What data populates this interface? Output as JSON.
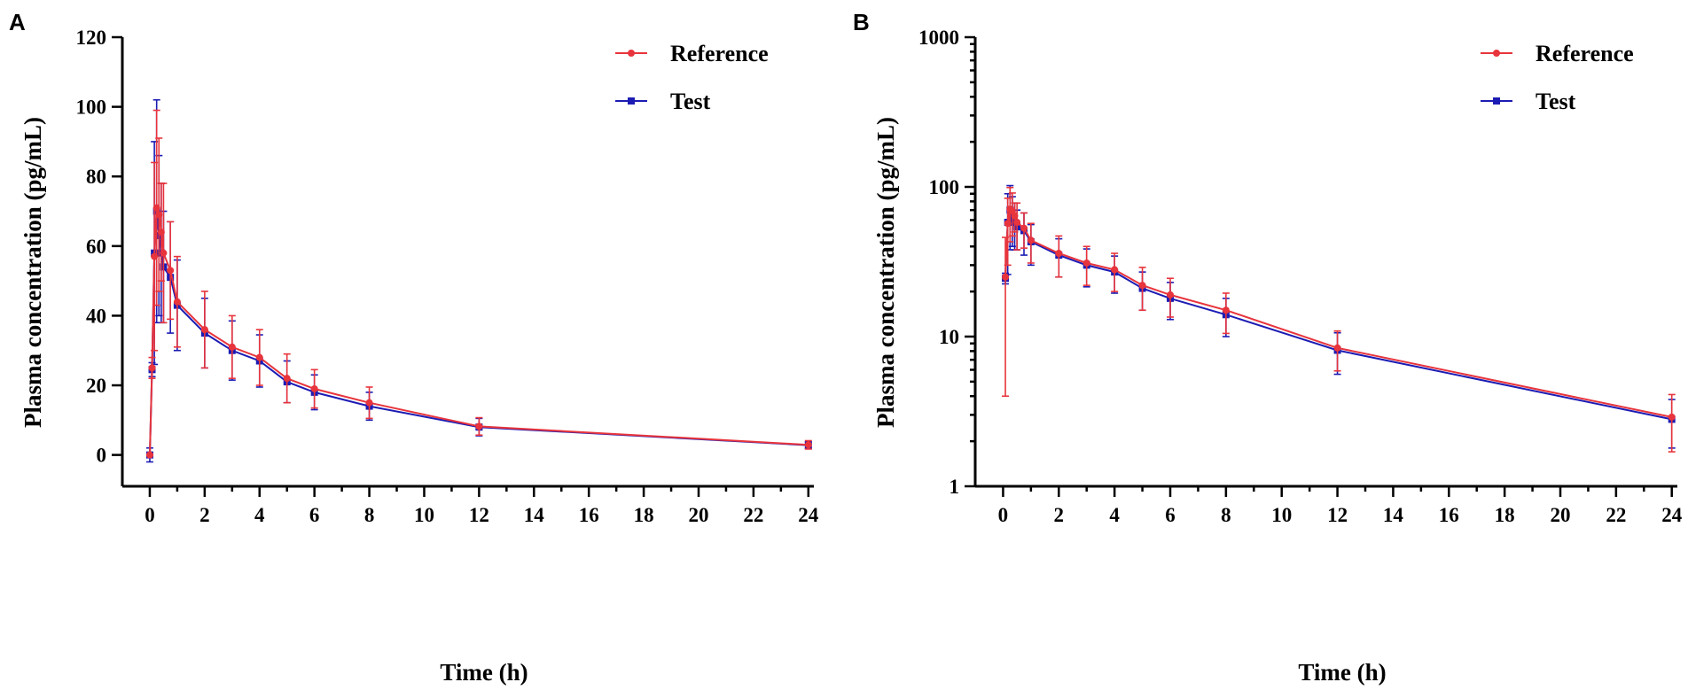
{
  "colors": {
    "reference": "#e8343c",
    "test": "#1c1cb4",
    "axis": "#000000"
  },
  "chart_data": [
    {
      "panel": "A",
      "type": "line",
      "scale": "linear",
      "xlabel": "Time (h)",
      "ylabel": "Plasma concentration (pg/mL)",
      "xlim": [
        -1,
        24.2
      ],
      "ylim": [
        -9,
        120
      ],
      "xticks": [
        0,
        2,
        4,
        6,
        8,
        10,
        12,
        14,
        16,
        18,
        20,
        22,
        24
      ],
      "xtick_labels": [
        "0",
        "2",
        "4",
        "6",
        "8",
        "10",
        "12",
        "14",
        "16",
        "18",
        "20",
        "22",
        "24"
      ],
      "yticks": [
        0,
        20,
        40,
        60,
        80,
        100,
        120
      ],
      "ytick_labels": [
        "0",
        "20",
        "40",
        "60",
        "80",
        "100",
        "120"
      ],
      "legend_position": "top-right",
      "series": [
        {
          "name": "Reference",
          "marker": "circle",
          "x": [
            0,
            0.083,
            0.167,
            0.25,
            0.333,
            0.417,
            0.5,
            0.75,
            1,
            2,
            3,
            4,
            5,
            6,
            8,
            12,
            24
          ],
          "y": [
            0,
            25,
            57,
            71,
            69,
            64,
            58,
            53,
            44,
            36,
            31,
            28,
            22,
            19,
            15,
            8.2,
            2.9
          ],
          "sd": [
            0,
            3,
            27,
            28,
            22,
            14,
            20,
            14,
            13,
            11,
            9,
            8,
            7,
            5.5,
            4.5,
            2.5,
            1.2
          ]
        },
        {
          "name": "Test",
          "marker": "square",
          "x": [
            0,
            0.083,
            0.167,
            0.25,
            0.333,
            0.417,
            0.5,
            0.75,
            1,
            2,
            3,
            4,
            5,
            6,
            8,
            12,
            24
          ],
          "y": [
            0,
            24.5,
            58,
            70,
            63,
            58,
            54,
            51,
            43,
            35,
            30,
            27,
            21,
            18,
            14,
            8,
            2.8
          ],
          "sd": [
            2,
            2,
            32,
            32,
            23,
            20,
            16,
            16,
            13,
            10,
            8.5,
            7.5,
            6,
            5,
            4,
            2.5,
            1
          ]
        }
      ]
    },
    {
      "panel": "B",
      "type": "line",
      "scale": "log",
      "xlabel": "Time (h)",
      "ylabel": "Plasma concentration (pg/mL)",
      "xlim": [
        -1,
        24.2
      ],
      "ylim": [
        1,
        1000
      ],
      "xticks": [
        0,
        2,
        4,
        6,
        8,
        10,
        12,
        14,
        16,
        18,
        20,
        22,
        24
      ],
      "xtick_labels": [
        "0",
        "2",
        "4",
        "6",
        "8",
        "10",
        "12",
        "14",
        "16",
        "18",
        "20",
        "22",
        "24"
      ],
      "yticks": [
        1,
        10,
        100,
        1000
      ],
      "ytick_labels": [
        "1",
        "10",
        "100",
        "1000"
      ],
      "legend_position": "top-right",
      "series": [
        {
          "name": "Reference",
          "marker": "circle",
          "x": [
            0.083,
            0.167,
            0.25,
            0.333,
            0.417,
            0.5,
            0.75,
            1,
            2,
            3,
            4,
            5,
            6,
            8,
            12,
            24
          ],
          "y": [
            25,
            57,
            71,
            69,
            64,
            58,
            53,
            44,
            36,
            31,
            28,
            22,
            19,
            15,
            8.4,
            2.9
          ],
          "sd": [
            21,
            27,
            28,
            22,
            14,
            20,
            14,
            13,
            11,
            9,
            8,
            7,
            5.5,
            4.5,
            2.5,
            1.2
          ]
        },
        {
          "name": "Test",
          "marker": "square",
          "x": [
            0.083,
            0.167,
            0.25,
            0.333,
            0.417,
            0.5,
            0.75,
            1,
            2,
            3,
            4,
            5,
            6,
            8,
            12,
            24
          ],
          "y": [
            24.5,
            58,
            70,
            63,
            58,
            54,
            51,
            43,
            35,
            30,
            27,
            21,
            18,
            14,
            8.1,
            2.8
          ],
          "sd": [
            2,
            32,
            32,
            23,
            20,
            16,
            16,
            13,
            10,
            8.5,
            7.5,
            6,
            5,
            4,
            2.5,
            1
          ]
        }
      ]
    }
  ]
}
